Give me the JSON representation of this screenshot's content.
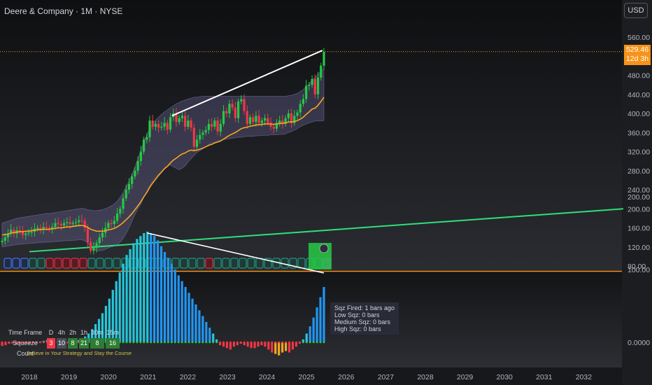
{
  "header": {
    "title": "Deere & Company · 1M · NYSE",
    "currency": "USD"
  },
  "price_tag": {
    "price": "529.46",
    "countdown": "12d 3h"
  },
  "colors": {
    "up": "#26c945",
    "down": "#f23645",
    "ema": "#f5a623",
    "band": "#6f6a9e",
    "trend": "#2ee07a",
    "wick_line": "#ffffff",
    "momentum_strong": "#2196f3",
    "momentum_light": "#26c6da",
    "price_line": "#f7931a"
  },
  "info_box": {
    "lines": [
      "Sqz Fired: 1 bars ago",
      "Low Sqz: 0 bars",
      "Medium Sqz: 0 bars",
      "High Sqz: 0 bars"
    ]
  },
  "squeeze_table": {
    "header_label": "Time Frame",
    "timeframes": [
      "D",
      "4h",
      "2h",
      "1h",
      "30m",
      "15m"
    ],
    "row_label": "Squeeze Count",
    "counts": [
      "3",
      "10",
      "8",
      "21",
      "8",
      "16"
    ],
    "count_colors": [
      "#f23645",
      "#4a4d57",
      "#2e7d32",
      "#2e7d32",
      "#2e7d32",
      "#2e7d32"
    ],
    "motto": "Believe in Your Strategy and Stay the Course"
  },
  "chart_data": [
    {
      "type": "line",
      "name": "price",
      "y_ticks": [
        "560.00",
        "520.00",
        "480.00",
        "440.00",
        "400.00",
        "360.00",
        "320.00",
        "280.00",
        "240.00",
        "200.00",
        "160.00",
        "120.00",
        "80.00"
      ],
      "ylim": [
        75,
        580
      ],
      "x_ticks": [
        "2018",
        "2019",
        "2020",
        "2021",
        "2022",
        "2023",
        "2024",
        "2025",
        "2026",
        "2027",
        "2028",
        "2029",
        "2030",
        "2031",
        "2032"
      ],
      "grid": false,
      "trendline": {
        "from": [
          2018.0,
          110
        ],
        "to": [
          2033.0,
          200
        ]
      },
      "upper_wedge_line": {
        "from": [
          2021.6,
          395
        ],
        "to": [
          2025.4,
          532
        ]
      },
      "close": [
        133,
        140,
        148,
        156,
        148,
        155,
        152,
        145,
        148,
        150,
        152,
        158,
        160,
        156,
        162,
        160,
        158,
        162,
        170,
        168,
        165,
        170,
        172,
        168,
        170,
        172,
        176,
        175,
        160,
        130,
        112,
        118,
        128,
        140,
        150,
        160,
        170,
        168,
        175,
        190,
        200,
        222,
        240,
        252,
        268,
        280,
        300,
        320,
        345,
        350,
        385,
        372,
        378,
        370,
        372,
        380,
        366,
        392,
        400,
        382,
        390,
        395,
        372,
        385,
        370,
        330,
        345,
        355,
        360,
        365,
        378,
        372,
        385,
        362,
        378,
        405,
        400,
        420,
        412,
        390,
        425,
        430,
        405,
        378,
        392,
        382,
        395,
        380,
        385,
        390,
        380,
        372,
        368,
        380,
        385,
        378,
        390,
        400,
        380,
        395,
        402,
        420,
        430,
        458,
        460,
        472,
        440,
        475,
        500,
        529
      ],
      "ema": [
        145,
        146,
        147,
        149,
        150,
        151,
        152,
        152,
        153,
        153,
        154,
        155,
        156,
        156,
        157,
        157,
        157,
        158,
        159,
        160,
        160,
        161,
        162,
        162,
        163,
        164,
        165,
        165,
        164,
        161,
        157,
        155,
        153,
        153,
        153,
        154,
        156,
        157,
        159,
        162,
        166,
        171,
        177,
        183,
        190,
        198,
        206,
        215,
        225,
        234,
        245,
        254,
        262,
        270,
        277,
        284,
        289,
        296,
        302,
        306,
        311,
        315,
        317,
        321,
        323,
        322,
        323,
        325,
        327,
        330,
        333,
        335,
        338,
        340,
        342,
        346,
        350,
        354,
        357,
        360,
        364,
        368,
        370,
        371,
        373,
        374,
        376,
        376,
        377,
        378,
        378,
        378,
        377,
        378,
        379,
        379,
        380,
        382,
        382,
        383,
        385,
        388,
        392,
        398,
        403,
        409,
        411,
        417,
        425,
        434
      ],
      "band_upper": [
        170,
        172,
        174,
        176,
        178,
        180,
        181,
        182,
        183,
        184,
        185,
        186,
        187,
        188,
        189,
        190,
        190,
        191,
        192,
        193,
        194,
        195,
        196,
        197,
        198,
        199,
        200,
        201,
        200,
        198,
        197,
        196,
        196,
        197,
        198,
        200,
        203,
        206,
        210,
        216,
        224,
        234,
        246,
        258,
        272,
        288,
        305,
        322,
        340,
        355,
        368,
        378,
        386,
        392,
        398,
        403,
        407,
        412,
        416,
        420,
        423,
        426,
        428,
        430,
        432,
        434,
        434,
        435,
        436,
        436,
        436,
        436,
        436,
        436,
        436,
        436,
        436,
        436,
        436,
        436,
        436,
        436,
        436,
        436,
        436,
        436,
        436,
        436,
        436,
        436,
        436,
        436,
        436,
        436,
        436,
        436,
        436,
        437,
        438,
        440,
        442,
        446,
        450,
        456,
        462,
        470,
        476,
        482,
        488,
        494
      ],
      "band_lower": [
        120,
        121,
        122,
        123,
        124,
        125,
        126,
        126,
        127,
        127,
        128,
        128,
        129,
        129,
        130,
        130,
        130,
        131,
        131,
        132,
        132,
        133,
        133,
        133,
        134,
        134,
        135,
        135,
        133,
        128,
        120,
        115,
        112,
        112,
        113,
        115,
        118,
        120,
        122,
        125,
        130,
        138,
        148,
        160,
        174,
        188,
        200,
        210,
        224,
        236,
        248,
        258,
        266,
        272,
        278,
        286,
        290,
        292,
        288,
        285,
        282,
        285,
        290,
        298,
        305,
        312,
        318,
        322,
        326,
        330,
        335,
        338,
        340,
        342,
        344,
        345,
        346,
        347,
        348,
        349,
        350,
        350,
        351,
        352,
        352,
        352,
        353,
        353,
        354,
        354,
        354,
        355,
        355,
        355,
        356,
        356,
        357,
        360,
        362,
        365,
        368,
        372,
        375,
        378,
        380,
        382,
        384,
        384,
        384,
        385
      ]
    },
    {
      "type": "bar",
      "name": "squeeze momentum",
      "y_ticks": [
        "200.00",
        "100.00",
        "0.0000"
      ],
      "ylim": [
        -30,
        200
      ],
      "values": [
        -5,
        -4,
        -2,
        0,
        -3,
        -2,
        -1,
        0,
        -2,
        -1,
        0,
        1,
        2,
        3,
        3,
        2,
        1,
        0,
        -2,
        -1,
        0,
        2,
        3,
        5,
        8,
        12,
        18,
        25,
        32,
        40,
        50,
        60,
        72,
        84,
        96,
        108,
        120,
        128,
        136,
        142,
        146,
        150,
        152,
        150,
        146,
        140,
        132,
        124,
        116,
        108,
        100,
        92,
        84,
        76,
        68,
        60,
        52,
        44,
        36,
        28,
        20,
        12,
        4,
        -4,
        -6,
        -8,
        -10,
        -6,
        -4,
        -2,
        -4,
        -6,
        -8,
        -8,
        -6,
        -4,
        -6,
        -10,
        -14,
        -16,
        -18,
        -14,
        -12,
        -14,
        -10,
        -6,
        -2,
        4,
        12,
        22,
        34,
        48,
        62,
        76
      ]
    }
  ]
}
